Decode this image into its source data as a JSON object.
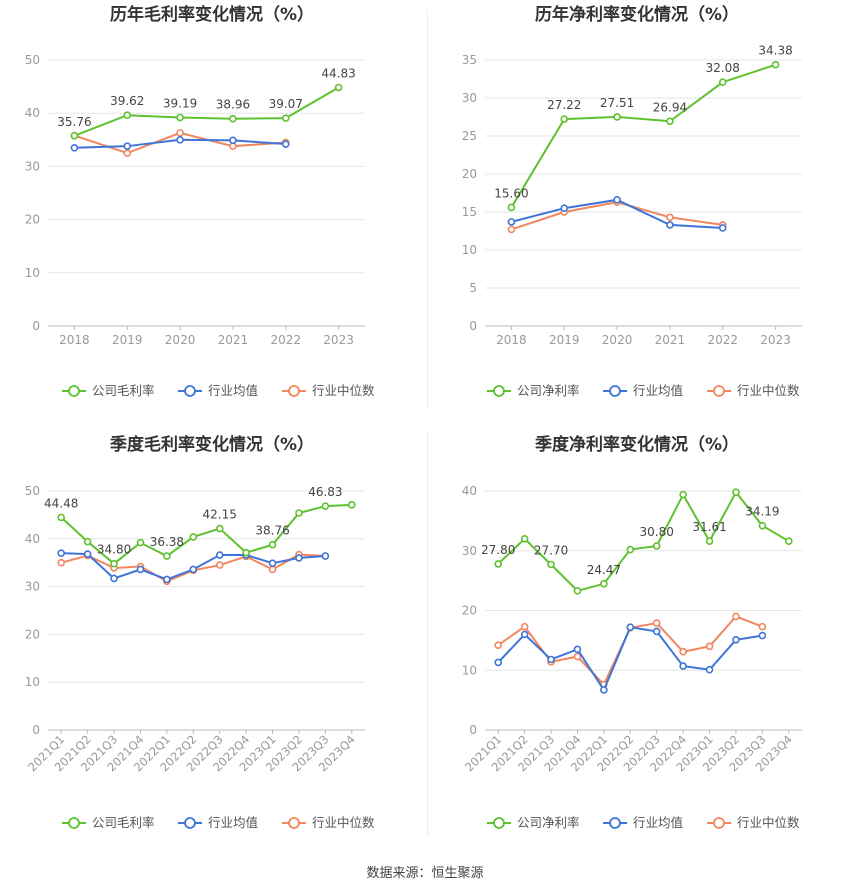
{
  "colors": {
    "company": "#5ec12e",
    "avg": "#3f74d9",
    "median": "#f1865f",
    "grid": "#e6e6e6",
    "axis_text": "#999999",
    "label_text": "#444444"
  },
  "source_text": "数据来源：恒生聚源",
  "chart_data": [
    {
      "type": "line",
      "title": "历年毛利率变化情况（%）",
      "x": [
        "2018",
        "2019",
        "2020",
        "2021",
        "2022",
        "2023"
      ],
      "yticks": [
        0,
        10,
        20,
        30,
        40,
        50
      ],
      "ylim": [
        0,
        50
      ],
      "grid": true,
      "legend_position": "bottom",
      "series": [
        {
          "name": "公司毛利率",
          "role": "company",
          "values": [
            35.76,
            39.62,
            39.19,
            38.96,
            39.07,
            44.83
          ]
        },
        {
          "name": "行业均值",
          "role": "avg",
          "values": [
            33.5,
            33.8,
            35.0,
            34.9,
            34.2,
            null
          ]
        },
        {
          "name": "行业中位数",
          "role": "median",
          "values": [
            35.8,
            32.5,
            36.3,
            33.8,
            34.5,
            null
          ]
        }
      ],
      "labels": [
        {
          "index": 0,
          "text": "35.76"
        },
        {
          "index": 1,
          "text": "39.62"
        },
        {
          "index": 2,
          "text": "39.19"
        },
        {
          "index": 3,
          "text": "38.96"
        },
        {
          "index": 4,
          "text": "39.07"
        },
        {
          "index": 5,
          "text": "44.83"
        }
      ]
    },
    {
      "type": "line",
      "title": "历年净利率变化情况（%）",
      "x": [
        "2018",
        "2019",
        "2020",
        "2021",
        "2022",
        "2023"
      ],
      "yticks": [
        0,
        5,
        10,
        15,
        20,
        25,
        30,
        35
      ],
      "ylim": [
        0,
        35
      ],
      "grid": true,
      "legend_position": "bottom",
      "series": [
        {
          "name": "公司净利率",
          "role": "company",
          "values": [
            15.6,
            27.22,
            27.51,
            26.94,
            32.08,
            34.38
          ]
        },
        {
          "name": "行业均值",
          "role": "avg",
          "values": [
            13.7,
            15.5,
            16.6,
            13.3,
            12.9,
            null
          ]
        },
        {
          "name": "行业中位数",
          "role": "median",
          "values": [
            12.7,
            15.0,
            16.3,
            14.3,
            13.3,
            null
          ]
        }
      ],
      "labels": [
        {
          "index": 0,
          "text": "15.60"
        },
        {
          "index": 1,
          "text": "27.22"
        },
        {
          "index": 2,
          "text": "27.51"
        },
        {
          "index": 3,
          "text": "26.94"
        },
        {
          "index": 4,
          "text": "32.08"
        },
        {
          "index": 5,
          "text": "34.38"
        }
      ]
    },
    {
      "type": "line",
      "title": "季度毛利率变化情况（%）",
      "x": [
        "2021Q1",
        "2021Q2",
        "2021Q3",
        "2021Q4",
        "2022Q1",
        "2022Q2",
        "2022Q3",
        "2022Q4",
        "2023Q1",
        "2023Q2",
        "2023Q3",
        "2023Q4"
      ],
      "yticks": [
        0,
        10,
        20,
        30,
        40,
        50
      ],
      "ylim": [
        0,
        50
      ],
      "grid": true,
      "legend_position": "bottom",
      "series": [
        {
          "name": "公司毛利率",
          "role": "company",
          "values": [
            44.48,
            39.4,
            34.8,
            39.2,
            36.38,
            40.4,
            42.15,
            37.1,
            38.76,
            45.4,
            46.83,
            47.1
          ]
        },
        {
          "name": "行业均值",
          "role": "avg",
          "values": [
            37.0,
            36.8,
            31.7,
            33.6,
            31.5,
            33.6,
            36.6,
            36.6,
            34.9,
            36.0,
            36.4,
            null
          ]
        },
        {
          "name": "行业中位数",
          "role": "median",
          "values": [
            35.0,
            36.5,
            33.9,
            34.2,
            31.1,
            33.4,
            34.5,
            36.3,
            33.6,
            36.7,
            36.4,
            null
          ]
        }
      ],
      "labels": [
        {
          "index": 0,
          "text": "44.48"
        },
        {
          "index": 2,
          "text": "34.80"
        },
        {
          "index": 4,
          "text": "36.38"
        },
        {
          "index": 6,
          "text": "42.15"
        },
        {
          "index": 8,
          "text": "38.76"
        },
        {
          "index": 10,
          "text": "46.83"
        }
      ]
    },
    {
      "type": "line",
      "title": "季度净利率变化情况（%）",
      "x": [
        "2021Q1",
        "2021Q2",
        "2021Q3",
        "2021Q4",
        "2022Q1",
        "2022Q2",
        "2022Q3",
        "2022Q4",
        "2023Q1",
        "2023Q2",
        "2023Q3",
        "2023Q4"
      ],
      "yticks": [
        0,
        10,
        20,
        30,
        40
      ],
      "ylim": [
        0,
        40
      ],
      "grid": true,
      "legend_position": "bottom",
      "series": [
        {
          "name": "公司净利率",
          "role": "company",
          "values": [
            27.8,
            32.0,
            27.7,
            23.3,
            24.47,
            30.2,
            30.8,
            39.4,
            31.61,
            39.8,
            34.19,
            31.6
          ]
        },
        {
          "name": "行业均值",
          "role": "avg",
          "values": [
            11.3,
            16.0,
            11.8,
            13.5,
            6.7,
            17.2,
            16.5,
            10.7,
            10.1,
            15.1,
            15.8,
            null
          ]
        },
        {
          "name": "行业中位数",
          "role": "median",
          "values": [
            14.2,
            17.3,
            11.4,
            12.3,
            7.6,
            17.1,
            17.9,
            13.1,
            14.0,
            19.0,
            17.3,
            null
          ]
        }
      ],
      "labels": [
        {
          "index": 0,
          "text": "27.80"
        },
        {
          "index": 2,
          "text": "27.70"
        },
        {
          "index": 4,
          "text": "24.47"
        },
        {
          "index": 6,
          "text": "30.80"
        },
        {
          "index": 8,
          "text": "31.61"
        },
        {
          "index": 10,
          "text": "34.19"
        }
      ]
    }
  ]
}
